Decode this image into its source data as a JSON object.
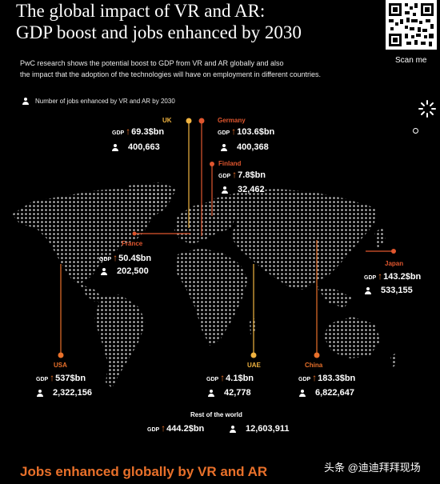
{
  "title": "The global impact of VR and AR:\nGDP boost and jobs enhanced by 2030",
  "intro_line1": "PwC research shows the potential boost to GDP from VR and AR globally and also",
  "intro_line2": "the impact that the adoption of the technologies will have on employment in different countries.",
  "legend": "Number of jobs enhanced by VR and AR by 2030",
  "scan_label": "Scan me",
  "gdp_label": "GDP",
  "regions": {
    "uk": {
      "name": "UK",
      "gdp": "69.3$bn",
      "jobs": "400,663"
    },
    "germany": {
      "name": "Germany",
      "gdp": "103.6$bn",
      "jobs": "400,368"
    },
    "finland": {
      "name": "Finland",
      "gdp": "7.8$bn",
      "jobs": "32,462"
    },
    "france": {
      "name": "France",
      "gdp": "50.4$bn",
      "jobs": "202,500"
    },
    "japan": {
      "name": "Japan",
      "gdp": "143.2$bn",
      "jobs": "533,155"
    },
    "usa": {
      "name": "USA",
      "gdp": "537$bn",
      "jobs": "2,322,156"
    },
    "uae": {
      "name": "UAE",
      "gdp": "4.1$bn",
      "jobs": "42,778"
    },
    "china": {
      "name": "China",
      "gdp": "183.3$bn",
      "jobs": "6,822,647"
    },
    "rest": {
      "name": "Rest of the world",
      "gdp": "444.2$bn",
      "jobs": "12,603,911"
    }
  },
  "colors": {
    "uk": "#f0b340",
    "germany": "#e0562e",
    "finland": "#e0562e",
    "france": "#e0562e",
    "japan": "#e0562e",
    "usa": "#e8702a",
    "uae": "#f0b340",
    "china": "#e8702a"
  },
  "bottom_heading": "Jobs enhanced globally by VR and AR",
  "watermark": "头条 @迪迪拜拜现场"
}
